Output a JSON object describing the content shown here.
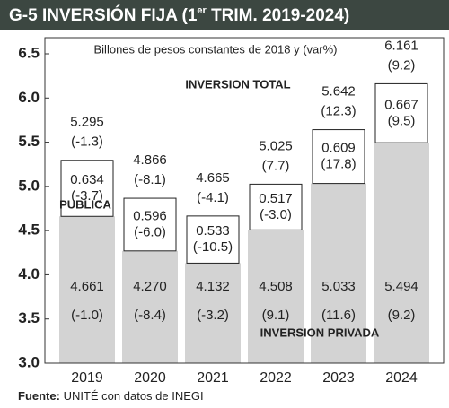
{
  "chart_data": {
    "type": "bar",
    "title": [
      "G-5 INVERSIÓN FIJA (1",
      "er",
      " TRIM. 2019-2024)"
    ],
    "subtitle": "Billones de pesos constantes de 2018 y (var%)",
    "annotations": [
      "INVERSION TOTAL",
      "PUBLICA",
      "INVERSION PRIVADA"
    ],
    "source": [
      "Fuente:",
      " UNITÉ con datos de INEGI"
    ],
    "categories": [
      "2019",
      "2020",
      "2021",
      "2022",
      "2023",
      "2024"
    ],
    "ylim": [
      3.0,
      6.5
    ],
    "yticks": [
      {
        "value": 3,
        "label": "3.0"
      },
      3.5,
      {
        "value": 4,
        "label": "4.0"
      },
      4.5,
      {
        "value": 5,
        "label": "5.0"
      },
      5.5,
      {
        "value": 6,
        "label": "6.0"
      },
      6.5
    ],
    "grid": false,
    "series": [
      {
        "name": "INVERSION PRIVADA",
        "color": "#d3d3d3",
        "values": [
          4.661,
          4.27,
          4.132,
          4.508,
          5.033,
          5.494
        ],
        "value_labels": [
          "4.661",
          "4.270",
          "4.132",
          "4.508",
          "5.033",
          "5.494"
        ],
        "changes": [
          -1.0,
          -8.4,
          -3.2,
          9.1,
          11.6,
          9.2
        ],
        "change_labels": [
          "(-1.0)",
          "(-8.4)",
          "(-3.2)",
          "(9.1)",
          "(11.6)",
          "(9.2)"
        ]
      },
      {
        "name": "PUBLICA",
        "color": "#ffffff",
        "values": [
          0.634,
          0.596,
          0.533,
          0.517,
          0.609,
          0.667
        ],
        "value_labels": [
          "0.634",
          "0.596",
          "0.533",
          "0.517",
          "0.609",
          "0.667"
        ],
        "changes": [
          -3.7,
          -6.0,
          -10.5,
          -3.0,
          17.8,
          9.5
        ],
        "change_labels": [
          "(-3.7)",
          "(-6.0)",
          "(-10.5)",
          "(-3.0)",
          "(17.8)",
          "(9.5)"
        ]
      }
    ],
    "totals": {
      "name": "INVERSION TOTAL",
      "values": [
        5.295,
        4.866,
        4.665,
        5.025,
        5.642,
        6.161
      ],
      "value_labels": [
        "5.295",
        "4.866",
        "4.665",
        "5.025",
        "5.642",
        "6.161"
      ],
      "changes": [
        -1.3,
        -8.1,
        -4.1,
        7.7,
        12.3,
        9.2
      ],
      "change_labels": [
        "(-1.3)",
        "(-8.1)",
        "(-4.1)",
        "(7.7)",
        "(12.3)",
        "(9.2)"
      ]
    }
  }
}
